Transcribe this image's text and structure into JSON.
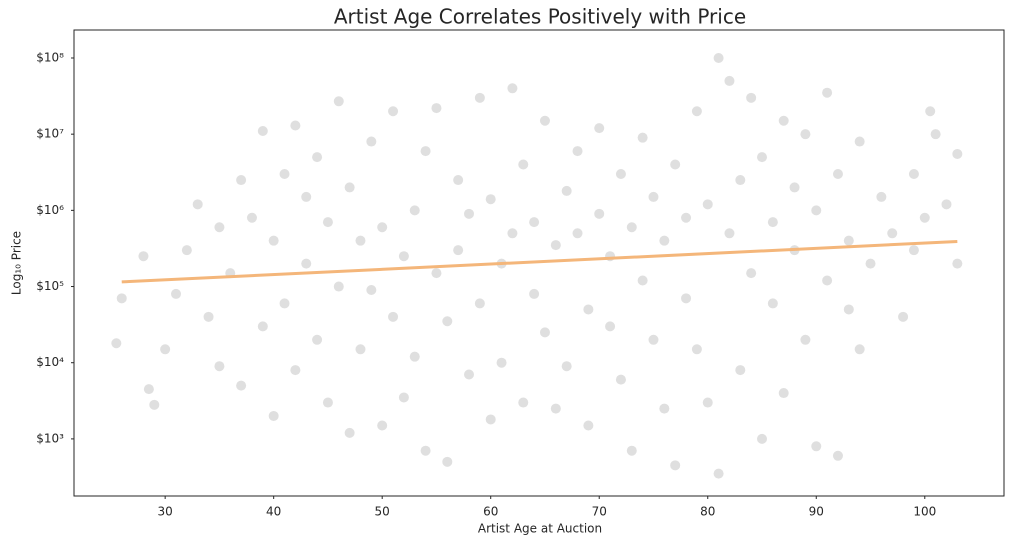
{
  "chart_data": {
    "type": "scatter",
    "title": "Artist Age Correlates Positively with Price",
    "x_label": "Artist Age at Auction",
    "y_label": "Log₁₀ Price",
    "ylog": true,
    "grid": false,
    "xlim": [
      21.6,
      107.3
    ],
    "ylim": [
      178,
      233000000
    ],
    "xticks": [
      30,
      40,
      50,
      60,
      70,
      80,
      90,
      100
    ],
    "yticks": [
      {
        "value": 1000,
        "label": "$10³"
      },
      {
        "value": 10000,
        "label": "$10⁴"
      },
      {
        "value": 100000,
        "label": "$10⁵"
      },
      {
        "value": 1000000,
        "label": "$10⁶"
      },
      {
        "value": 10000000,
        "label": "$10⁷"
      },
      {
        "value": 100000000,
        "label": "$10⁸"
      }
    ],
    "x": [
      26,
      25.5,
      28,
      28.5,
      29,
      30,
      31,
      32,
      33,
      34,
      35,
      35,
      36,
      37,
      37,
      38,
      39,
      39,
      40,
      40,
      41,
      41,
      42,
      42,
      43,
      43,
      44,
      44,
      45,
      45,
      46,
      46,
      47,
      47,
      48,
      48,
      49,
      49,
      50,
      50,
      51,
      51,
      52,
      52,
      53,
      53,
      54,
      54,
      55,
      55,
      56,
      56,
      57,
      57,
      58,
      58,
      59,
      59,
      60,
      60,
      61,
      61,
      62,
      62,
      63,
      63,
      64,
      64,
      65,
      65,
      66,
      66,
      67,
      67,
      68,
      68,
      69,
      69,
      70,
      70,
      71,
      71,
      72,
      72,
      73,
      73,
      74,
      74,
      75,
      75,
      76,
      76,
      77,
      77,
      78,
      78,
      79,
      79,
      80,
      80,
      81,
      81,
      82,
      82,
      83,
      83,
      84,
      84,
      85,
      85,
      86,
      86,
      87,
      87,
      88,
      88,
      89,
      89,
      90,
      90,
      91,
      91,
      92,
      92,
      93,
      93,
      94,
      94,
      95,
      96,
      97,
      98,
      99,
      100,
      101,
      102,
      103,
      103,
      100.5,
      99
    ],
    "series": [
      {
        "color": "#dcdcdc",
        "values": [
          70000,
          18000,
          250000,
          4500,
          2800,
          15000,
          80000,
          300000,
          1200000,
          40000,
          600000,
          9000,
          150000,
          2500000,
          5000,
          800000,
          11000000,
          30000,
          2000,
          400000,
          3000000,
          60000,
          13000000,
          8000,
          1500000,
          200000,
          20000,
          5000000,
          700000,
          3000,
          100000,
          27000000,
          1200,
          2000000,
          400000,
          15000,
          8000000,
          90000,
          1500,
          600000,
          20000000,
          40000,
          250000,
          3500,
          1000000,
          12000,
          6000000,
          700,
          150000,
          22000000,
          35000,
          500,
          2500000,
          300000,
          7000,
          900000,
          30000000,
          60000,
          1800,
          1400000,
          200000,
          10000,
          40000000,
          500000,
          3000,
          4000000,
          80000,
          700000,
          15000000,
          25000,
          2500,
          350000,
          1800000,
          9000,
          500000,
          6000000,
          50000,
          1500,
          900000,
          12000000,
          30000,
          250000,
          3000000,
          6000,
          700,
          600000,
          120000,
          9000000,
          20000,
          1500000,
          2500,
          400000,
          4000000,
          450,
          70000,
          800000,
          20000000,
          15000,
          1200000,
          3000,
          350,
          100000000,
          50000000,
          500000,
          8000,
          2500000,
          30000000,
          150000,
          1000,
          5000000,
          60000,
          700000,
          15000000,
          4000,
          300000,
          2000000,
          20000,
          10000000,
          800,
          1000000,
          120000,
          35000000,
          600,
          3000000,
          50000,
          400000,
          8000000,
          15000,
          200000,
          1500000,
          500000,
          40000,
          3000000,
          800000,
          10000000,
          1200000,
          5500000,
          200000,
          20000000,
          300000
        ]
      }
    ],
    "trend": {
      "color": "#f4b67a",
      "x": [
        26,
        103
      ],
      "y": [
        115000,
        390000
      ]
    }
  }
}
